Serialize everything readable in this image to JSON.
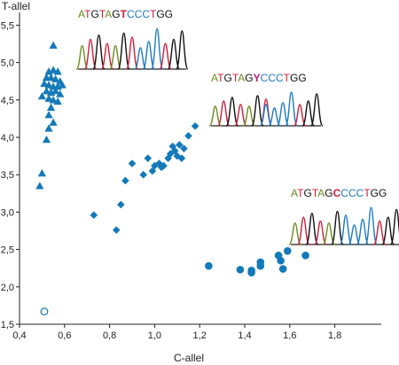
{
  "chart_data": {
    "type": "scatter",
    "xlabel": "C-allel",
    "ylabel": "T-allel",
    "xlim": [
      0.4,
      1.9
    ],
    "ylim": [
      1.5,
      5.6
    ],
    "x_ticks": [
      "0,4",
      "0,6",
      "0,8",
      "1,0",
      "1,2",
      "1,4",
      "1,6",
      "1,8"
    ],
    "y_ticks": [
      "1,5",
      "2,0",
      "2,5",
      "3,0",
      "3,5",
      "4,0",
      "4,5",
      "5,0",
      "5,5"
    ],
    "series": [
      {
        "marker": "triangle",
        "color": "#1479b8",
        "points": [
          [
            0.55,
            5.23
          ],
          [
            0.53,
            4.88
          ],
          [
            0.55,
            4.9
          ],
          [
            0.57,
            4.88
          ],
          [
            0.52,
            4.8
          ],
          [
            0.54,
            4.8
          ],
          [
            0.56,
            4.78
          ],
          [
            0.58,
            4.75
          ],
          [
            0.51,
            4.72
          ],
          [
            0.53,
            4.7
          ],
          [
            0.55,
            4.68
          ],
          [
            0.57,
            4.68
          ],
          [
            0.59,
            4.7
          ],
          [
            0.52,
            4.62
          ],
          [
            0.54,
            4.6
          ],
          [
            0.56,
            4.62
          ],
          [
            0.58,
            4.58
          ],
          [
            0.5,
            4.55
          ],
          [
            0.53,
            4.52
          ],
          [
            0.55,
            4.5
          ],
          [
            0.57,
            4.48
          ],
          [
            0.54,
            4.4
          ],
          [
            0.53,
            4.3
          ],
          [
            0.55,
            4.2
          ],
          [
            0.53,
            4.12
          ],
          [
            0.52,
            3.97
          ],
          [
            0.5,
            3.52
          ],
          [
            0.49,
            3.35
          ]
        ]
      },
      {
        "marker": "diamond",
        "color": "#1479b8",
        "points": [
          [
            0.73,
            2.96
          ],
          [
            0.83,
            2.76
          ],
          [
            0.85,
            3.1
          ],
          [
            0.87,
            3.42
          ],
          [
            0.9,
            3.65
          ],
          [
            0.95,
            3.5
          ],
          [
            0.97,
            3.72
          ],
          [
            0.99,
            3.55
          ],
          [
            1.0,
            3.62
          ],
          [
            1.02,
            3.65
          ],
          [
            1.03,
            3.6
          ],
          [
            1.04,
            3.62
          ],
          [
            1.06,
            3.72
          ],
          [
            1.07,
            3.78
          ],
          [
            1.08,
            3.88
          ],
          [
            1.09,
            3.82
          ],
          [
            1.1,
            3.75
          ],
          [
            1.11,
            3.9
          ],
          [
            1.12,
            3.72
          ],
          [
            1.13,
            3.85
          ],
          [
            1.15,
            4.02
          ],
          [
            1.18,
            4.15
          ]
        ]
      },
      {
        "marker": "circle",
        "color": "#1479b8",
        "points": [
          [
            1.24,
            2.28
          ],
          [
            1.38,
            2.23
          ],
          [
            1.43,
            2.19
          ],
          [
            1.43,
            2.22
          ],
          [
            1.47,
            2.28
          ],
          [
            1.47,
            2.33
          ],
          [
            1.55,
            2.42
          ],
          [
            1.56,
            2.35
          ],
          [
            1.57,
            2.24
          ],
          [
            1.59,
            2.48
          ],
          [
            1.67,
            2.42
          ]
        ]
      },
      {
        "marker": "open-circle",
        "color": "#1479b8",
        "points": [
          [
            0.51,
            1.67
          ]
        ]
      }
    ],
    "insets": [
      {
        "letters": [
          {
            "ch": "A",
            "color": "#6b8e23"
          },
          {
            "ch": "T",
            "color": "#cc1f3b"
          },
          {
            "ch": "G",
            "color": "#111111"
          },
          {
            "ch": "T",
            "color": "#cc1f3b"
          },
          {
            "ch": "A",
            "color": "#6b8e23"
          },
          {
            "ch": "G",
            "color": "#111111"
          },
          {
            "ch": "T",
            "color": "#cc1f3b",
            "bold": true
          },
          {
            "ch": "C",
            "color": "#1f7ac0"
          },
          {
            "ch": "C",
            "color": "#1f7ac0"
          },
          {
            "ch": "C",
            "color": "#1f7ac0"
          },
          {
            "ch": "T",
            "color": "#cc1f3b"
          },
          {
            "ch": "G",
            "color": "#111111"
          },
          {
            "ch": "G",
            "color": "#111111"
          }
        ]
      },
      {
        "letters": [
          {
            "ch": "A",
            "color": "#6b8e23"
          },
          {
            "ch": "T",
            "color": "#cc1f3b"
          },
          {
            "ch": "G",
            "color": "#111111"
          },
          {
            "ch": "T",
            "color": "#cc1f3b"
          },
          {
            "ch": "A",
            "color": "#6b8e23"
          },
          {
            "ch": "G",
            "color": "#111111"
          },
          {
            "ch": "Y",
            "color": "#c2187a",
            "bold": true
          },
          {
            "ch": "C",
            "color": "#1f7ac0"
          },
          {
            "ch": "C",
            "color": "#1f7ac0"
          },
          {
            "ch": "C",
            "color": "#1f7ac0"
          },
          {
            "ch": "T",
            "color": "#cc1f3b"
          },
          {
            "ch": "G",
            "color": "#111111"
          },
          {
            "ch": "G",
            "color": "#111111"
          }
        ]
      },
      {
        "letters": [
          {
            "ch": "A",
            "color": "#6b8e23"
          },
          {
            "ch": "T",
            "color": "#cc1f3b"
          },
          {
            "ch": "G",
            "color": "#111111"
          },
          {
            "ch": "T",
            "color": "#cc1f3b"
          },
          {
            "ch": "A",
            "color": "#6b8e23"
          },
          {
            "ch": "G",
            "color": "#111111"
          },
          {
            "ch": "C",
            "color": "#cc1f3b",
            "bold": true
          },
          {
            "ch": "C",
            "color": "#1f7ac0"
          },
          {
            "ch": "C",
            "color": "#1f7ac0"
          },
          {
            "ch": "C",
            "color": "#1f7ac0"
          },
          {
            "ch": "T",
            "color": "#cc1f3b"
          },
          {
            "ch": "G",
            "color": "#111111"
          },
          {
            "ch": "G",
            "color": "#111111"
          }
        ]
      }
    ]
  }
}
